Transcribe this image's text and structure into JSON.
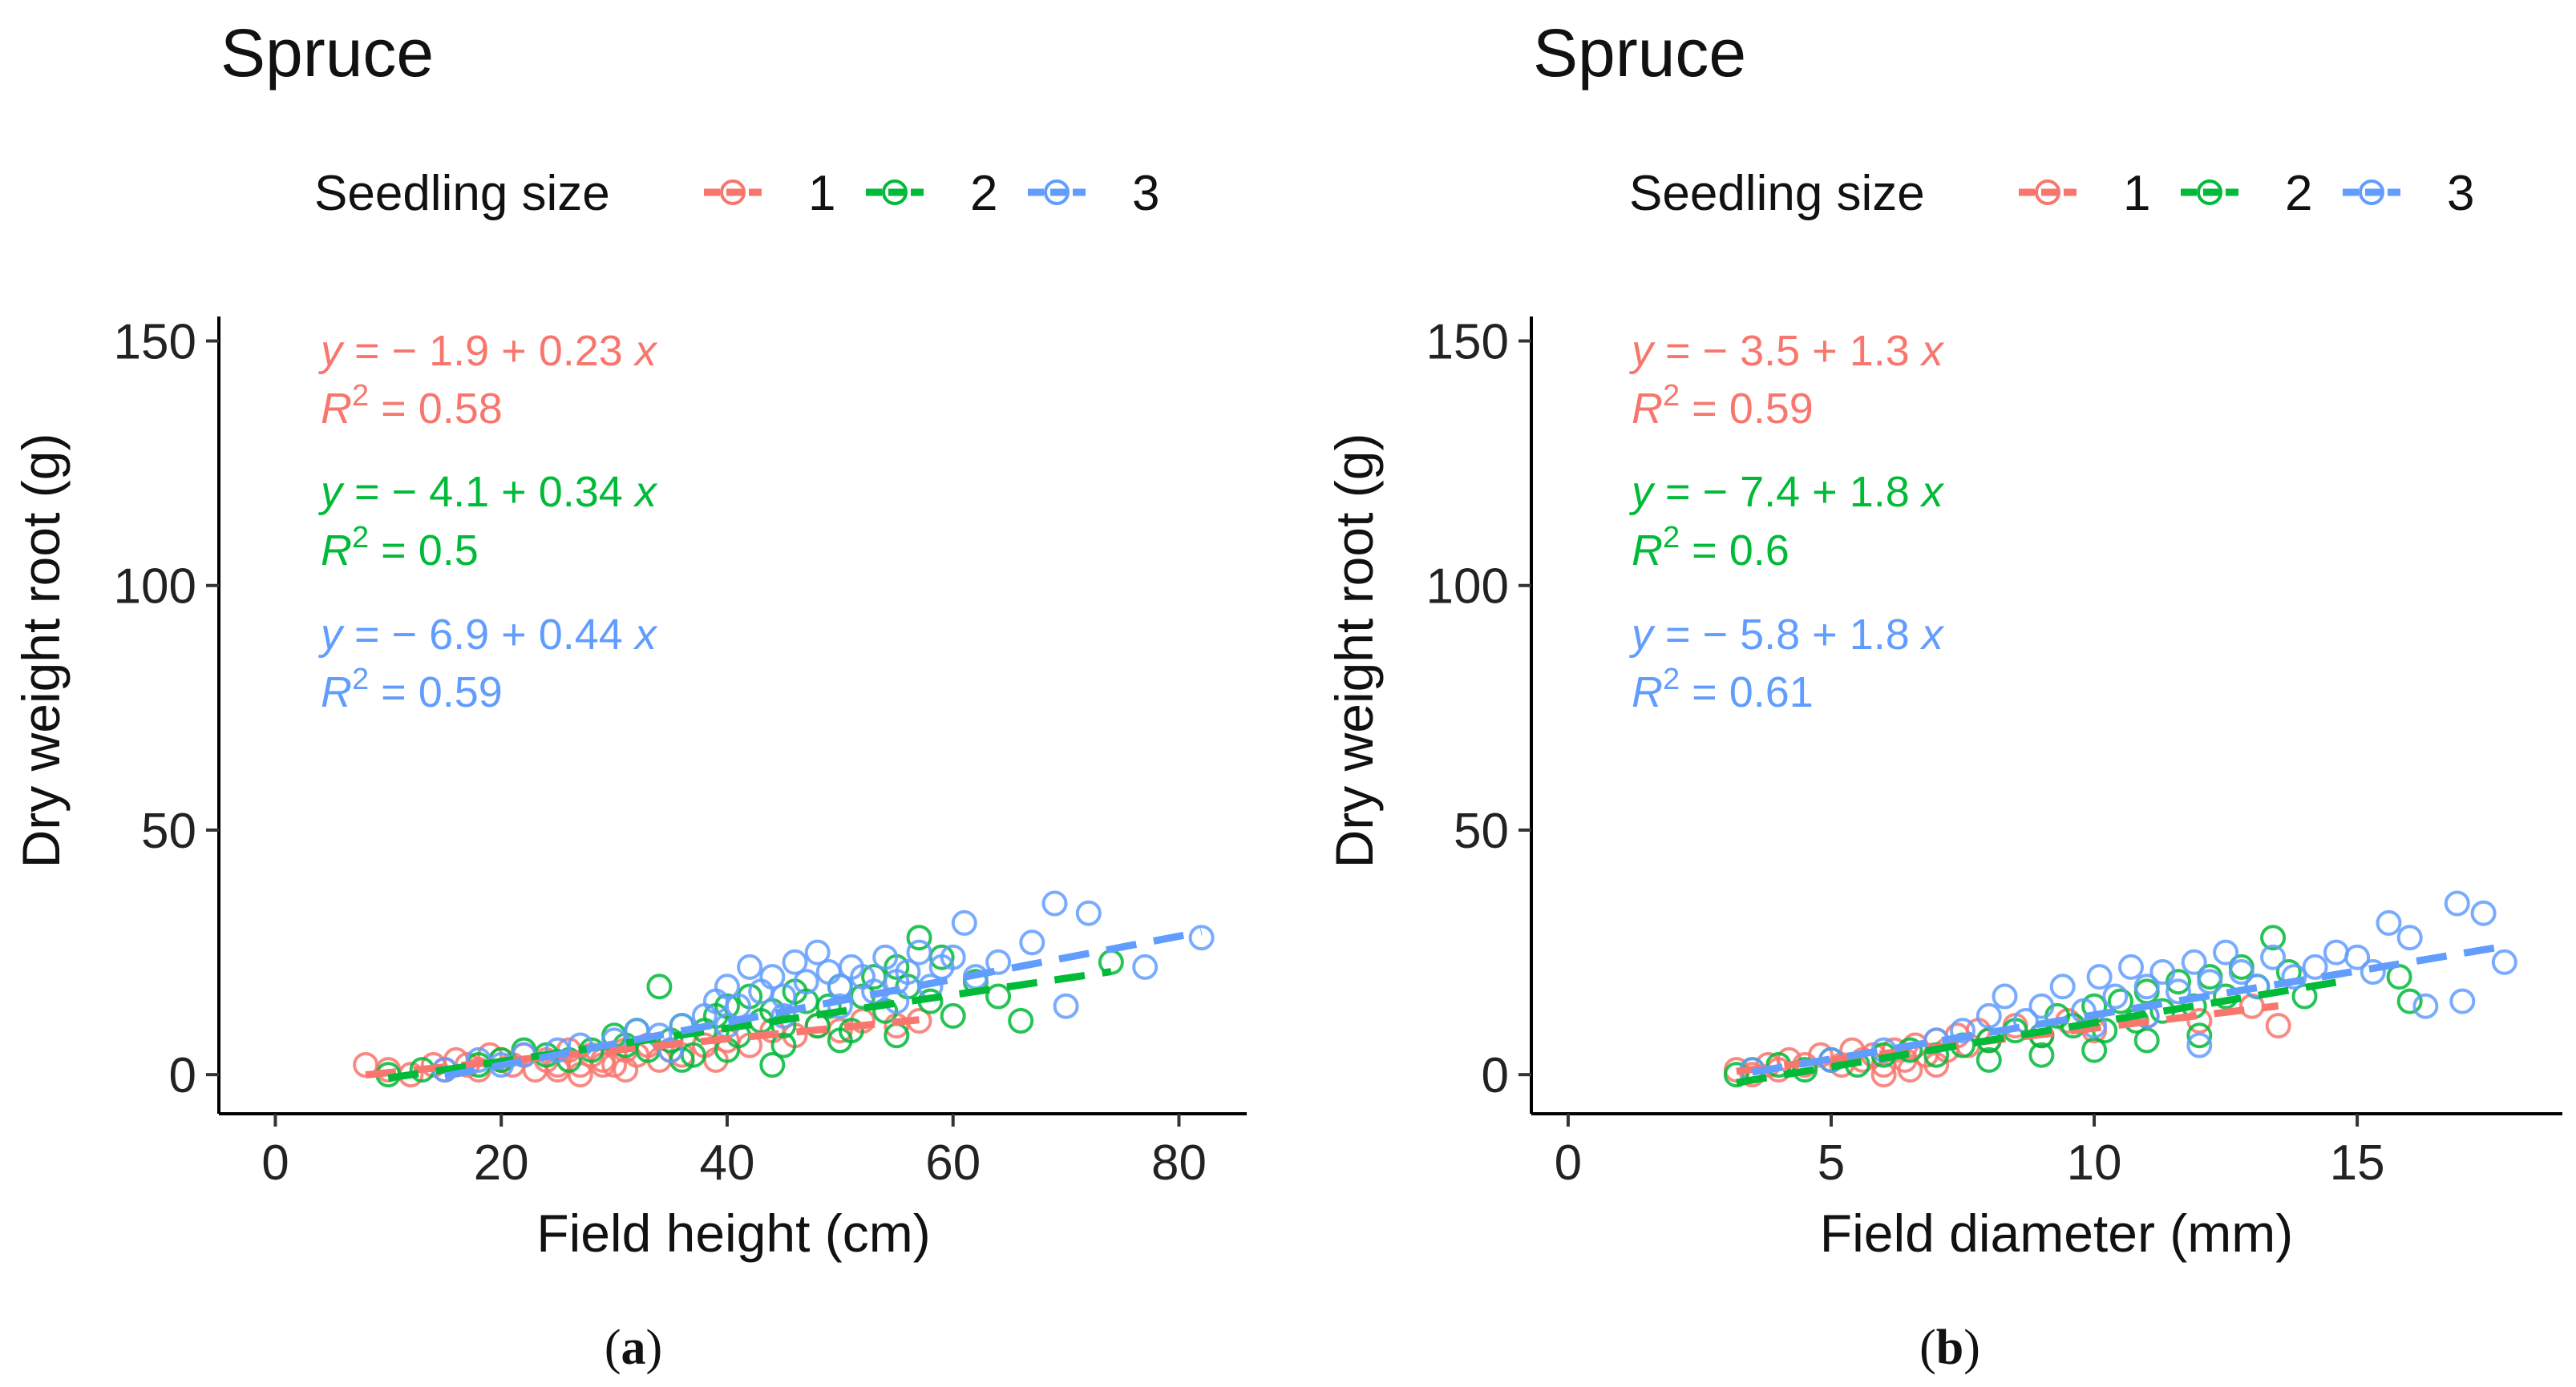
{
  "figure": {
    "panels": [
      {
        "id": "a",
        "caption_letter": "a",
        "legend": {
          "title": "Seedling size",
          "labels": [
            "1",
            "2",
            "3"
          ]
        }
      },
      {
        "id": "b",
        "caption_letter": "b",
        "legend": {
          "title": "Seedling size",
          "labels": [
            "1",
            "2",
            "3"
          ]
        }
      }
    ]
  },
  "colors": {
    "group1": "#F8766D",
    "group2": "#00BA38",
    "group3": "#619CFF",
    "axis": "#000000"
  },
  "chart_data": [
    {
      "type": "scatter",
      "title": "Spruce",
      "xlabel": "Field height (cm)",
      "ylabel": "Dry weight root (g)",
      "xlim": [
        -5,
        86
      ],
      "ylim": [
        -8,
        155
      ],
      "xticks": [
        0,
        20,
        40,
        60,
        80
      ],
      "yticks": [
        0,
        50,
        100,
        150
      ],
      "series": [
        {
          "name": "1",
          "equation": {
            "intercept": "− 1.9",
            "slope": "0.23",
            "r2": "0.58"
          },
          "fit": {
            "x": [
              8,
              57
            ],
            "y": [
              -0.06,
              11.21
            ]
          },
          "points": [
            [
              8,
              2
            ],
            [
              10,
              1
            ],
            [
              12,
              0
            ],
            [
              14,
              2
            ],
            [
              15,
              1
            ],
            [
              16,
              3
            ],
            [
              17,
              2
            ],
            [
              18,
              1
            ],
            [
              19,
              4
            ],
            [
              20,
              3
            ],
            [
              21,
              2
            ],
            [
              22,
              4
            ],
            [
              23,
              1
            ],
            [
              24,
              3
            ],
            [
              25,
              2
            ],
            [
              26,
              5
            ],
            [
              27,
              2
            ],
            [
              28,
              4
            ],
            [
              29,
              3
            ],
            [
              30,
              2
            ],
            [
              31,
              5
            ],
            [
              32,
              4
            ],
            [
              33,
              6
            ],
            [
              34,
              3
            ],
            [
              35,
              5
            ],
            [
              36,
              4
            ],
            [
              38,
              6
            ],
            [
              39,
              3
            ],
            [
              40,
              7
            ],
            [
              42,
              6
            ],
            [
              44,
              9
            ],
            [
              46,
              8
            ],
            [
              48,
              10
            ],
            [
              50,
              9
            ],
            [
              52,
              11
            ],
            [
              55,
              10
            ],
            [
              57,
              11
            ],
            [
              25,
              1
            ],
            [
              27,
              0
            ],
            [
              29,
              2
            ],
            [
              31,
              1
            ]
          ]
        },
        {
          "name": "2",
          "equation": {
            "intercept": "− 4.1",
            "slope": "0.34",
            "r2": "0.5"
          },
          "fit": {
            "x": [
              10,
              74
            ],
            "y": [
              -0.7,
              21.06
            ]
          },
          "points": [
            [
              10,
              0
            ],
            [
              13,
              1
            ],
            [
              18,
              2
            ],
            [
              20,
              3
            ],
            [
              22,
              5
            ],
            [
              24,
              4
            ],
            [
              26,
              3
            ],
            [
              28,
              5
            ],
            [
              30,
              8
            ],
            [
              31,
              6
            ],
            [
              32,
              9
            ],
            [
              33,
              5
            ],
            [
              34,
              18
            ],
            [
              35,
              7
            ],
            [
              36,
              10
            ],
            [
              37,
              4
            ],
            [
              38,
              9
            ],
            [
              39,
              12
            ],
            [
              40,
              14
            ],
            [
              41,
              8
            ],
            [
              42,
              16
            ],
            [
              43,
              11
            ],
            [
              44,
              13
            ],
            [
              45,
              6
            ],
            [
              46,
              17
            ],
            [
              47,
              15
            ],
            [
              48,
              10
            ],
            [
              49,
              14
            ],
            [
              50,
              18
            ],
            [
              51,
              9
            ],
            [
              52,
              16
            ],
            [
              53,
              20
            ],
            [
              54,
              13
            ],
            [
              55,
              22
            ],
            [
              56,
              18
            ],
            [
              57,
              28
            ],
            [
              58,
              15
            ],
            [
              59,
              24
            ],
            [
              60,
              12
            ],
            [
              62,
              19
            ],
            [
              64,
              16
            ],
            [
              66,
              11
            ],
            [
              74,
              23
            ],
            [
              40,
              5
            ],
            [
              45,
              10
            ],
            [
              50,
              7
            ],
            [
              55,
              8
            ],
            [
              36,
              3
            ],
            [
              44,
              2
            ]
          ]
        },
        {
          "name": "3",
          "equation": {
            "intercept": "− 6.9",
            "slope": "0.44",
            "r2": "0.59"
          },
          "fit": {
            "x": [
              15,
              82
            ],
            "y": [
              -0.3,
              29.18
            ]
          },
          "points": [
            [
              15,
              1
            ],
            [
              18,
              3
            ],
            [
              20,
              2
            ],
            [
              22,
              4
            ],
            [
              25,
              5
            ],
            [
              27,
              6
            ],
            [
              30,
              7
            ],
            [
              32,
              9
            ],
            [
              34,
              8
            ],
            [
              36,
              10
            ],
            [
              38,
              12
            ],
            [
              39,
              15
            ],
            [
              40,
              18
            ],
            [
              41,
              14
            ],
            [
              42,
              22
            ],
            [
              43,
              17
            ],
            [
              44,
              20
            ],
            [
              45,
              16
            ],
            [
              46,
              23
            ],
            [
              47,
              19
            ],
            [
              48,
              25
            ],
            [
              49,
              21
            ],
            [
              50,
              18
            ],
            [
              51,
              22
            ],
            [
              52,
              20
            ],
            [
              53,
              17
            ],
            [
              54,
              24
            ],
            [
              55,
              19
            ],
            [
              56,
              21
            ],
            [
              57,
              25
            ],
            [
              58,
              18
            ],
            [
              59,
              22
            ],
            [
              60,
              24
            ],
            [
              61,
              31
            ],
            [
              62,
              20
            ],
            [
              64,
              23
            ],
            [
              67,
              27
            ],
            [
              69,
              35
            ],
            [
              70,
              14
            ],
            [
              72,
              33
            ],
            [
              77,
              22
            ],
            [
              82,
              28
            ],
            [
              45,
              12
            ],
            [
              50,
              14
            ],
            [
              55,
              15
            ],
            [
              40,
              10
            ],
            [
              35,
              5
            ]
          ]
        }
      ]
    },
    {
      "type": "scatter",
      "title": "Spruce",
      "xlabel": "Field diameter (mm)",
      "ylabel": "Dry weight root (g)",
      "xlim": [
        -0.7,
        18.9
      ],
      "ylim": [
        -8,
        155
      ],
      "xticks": [
        0,
        5,
        10,
        15
      ],
      "yticks": [
        0,
        50,
        100,
        150
      ],
      "series": [
        {
          "name": "1",
          "equation": {
            "intercept": "− 3.5",
            "slope": "1.3",
            "r2": "0.59"
          },
          "fit": {
            "x": [
              3.2,
              13.5
            ],
            "y": [
              0.66,
              14.05
            ]
          },
          "points": [
            [
              3.2,
              1
            ],
            [
              3.5,
              0
            ],
            [
              3.8,
              2
            ],
            [
              4.0,
              1
            ],
            [
              4.2,
              3
            ],
            [
              4.5,
              2
            ],
            [
              4.8,
              4
            ],
            [
              5.0,
              3
            ],
            [
              5.2,
              2
            ],
            [
              5.4,
              5
            ],
            [
              5.6,
              3
            ],
            [
              5.8,
              4
            ],
            [
              6.0,
              2
            ],
            [
              6.2,
              5
            ],
            [
              6.4,
              3
            ],
            [
              6.6,
              6
            ],
            [
              6.8,
              4
            ],
            [
              7.0,
              7
            ],
            [
              7.2,
              5
            ],
            [
              7.4,
              8
            ],
            [
              7.6,
              6
            ],
            [
              7.8,
              9
            ],
            [
              8.0,
              7
            ],
            [
              8.5,
              10
            ],
            [
              9.0,
              8
            ],
            [
              9.5,
              11
            ],
            [
              10.0,
              9
            ],
            [
              11.0,
              12
            ],
            [
              12.0,
              11
            ],
            [
              13.0,
              14
            ],
            [
              13.5,
              10
            ],
            [
              6.0,
              0
            ],
            [
              6.5,
              1
            ],
            [
              7.0,
              2
            ]
          ]
        },
        {
          "name": "2",
          "equation": {
            "intercept": "− 7.4",
            "slope": "1.8",
            "r2": "0.6"
          },
          "fit": {
            "x": [
              3.2,
              14.8
            ],
            "y": [
              -1.64,
              19.24
            ]
          },
          "points": [
            [
              3.2,
              0
            ],
            [
              3.5,
              1
            ],
            [
              4.0,
              2
            ],
            [
              4.5,
              1
            ],
            [
              5.0,
              3
            ],
            [
              5.5,
              2
            ],
            [
              6.0,
              4
            ],
            [
              6.5,
              5
            ],
            [
              7.0,
              4
            ],
            [
              7.5,
              6
            ],
            [
              8.0,
              7
            ],
            [
              8.5,
              9
            ],
            [
              9.0,
              8
            ],
            [
              9.3,
              12
            ],
            [
              9.6,
              10
            ],
            [
              10.0,
              14
            ],
            [
              10.2,
              9
            ],
            [
              10.5,
              15
            ],
            [
              10.8,
              11
            ],
            [
              11.0,
              17
            ],
            [
              11.3,
              13
            ],
            [
              11.6,
              19
            ],
            [
              11.9,
              14
            ],
            [
              12.2,
              20
            ],
            [
              12.5,
              16
            ],
            [
              12.8,
              22
            ],
            [
              13.1,
              18
            ],
            [
              13.4,
              28
            ],
            [
              13.7,
              21
            ],
            [
              14.0,
              16
            ],
            [
              15.8,
              20
            ],
            [
              16.0,
              15
            ],
            [
              9.0,
              4
            ],
            [
              10.0,
              5
            ],
            [
              11.0,
              7
            ],
            [
              12.0,
              8
            ],
            [
              8.0,
              3
            ]
          ]
        },
        {
          "name": "3",
          "equation": {
            "intercept": "− 5.8",
            "slope": "1.8",
            "r2": "0.61"
          },
          "fit": {
            "x": [
              3.5,
              17.9
            ],
            "y": [
              0.5,
              26.42
            ]
          },
          "points": [
            [
              3.5,
              1
            ],
            [
              5.0,
              3
            ],
            [
              6.0,
              5
            ],
            [
              7.0,
              7
            ],
            [
              7.5,
              9
            ],
            [
              8.0,
              12
            ],
            [
              8.3,
              16
            ],
            [
              8.7,
              11
            ],
            [
              9.0,
              14
            ],
            [
              9.4,
              18
            ],
            [
              9.8,
              13
            ],
            [
              10.1,
              20
            ],
            [
              10.4,
              16
            ],
            [
              10.7,
              22
            ],
            [
              11.0,
              18
            ],
            [
              11.3,
              21
            ],
            [
              11.6,
              17
            ],
            [
              11.9,
              23
            ],
            [
              12.2,
              19
            ],
            [
              12.5,
              25
            ],
            [
              12.8,
              21
            ],
            [
              13.1,
              18
            ],
            [
              13.4,
              24
            ],
            [
              13.8,
              20
            ],
            [
              14.2,
              22
            ],
            [
              14.6,
              25
            ],
            [
              15.0,
              24
            ],
            [
              15.3,
              21
            ],
            [
              15.6,
              31
            ],
            [
              16.0,
              28
            ],
            [
              16.3,
              14
            ],
            [
              16.9,
              35
            ],
            [
              17.0,
              15
            ],
            [
              17.4,
              33
            ],
            [
              17.8,
              23
            ],
            [
              12.0,
              6
            ],
            [
              10.0,
              10
            ],
            [
              11.0,
              12
            ]
          ]
        }
      ]
    }
  ]
}
